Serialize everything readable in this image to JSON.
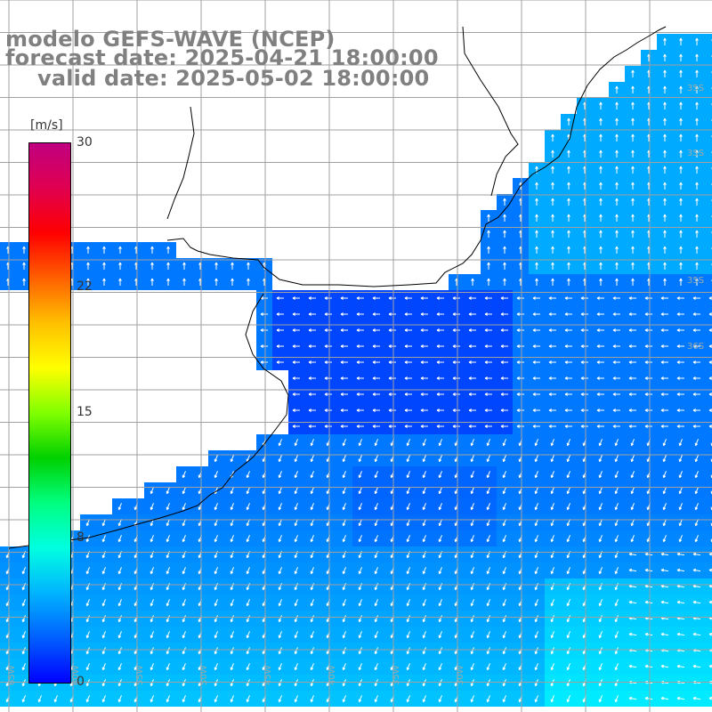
{
  "title": {
    "model": "modelo GEFS-WAVE (NCEP)",
    "forecast": "forecast date: 2025-04-21 18:00:00",
    "valid": "valid date: 2025-05-02 18:00:00"
  },
  "colorbar": {
    "unit": "[m/s]",
    "ticks": [
      "30",
      "22",
      "15",
      "8",
      "0"
    ],
    "tick_values": [
      30,
      22,
      15,
      8,
      0
    ],
    "range": [
      0,
      30
    ],
    "gradient": [
      "#0000ff",
      "#0060ff",
      "#00b4ff",
      "#00ffe0",
      "#00ff80",
      "#00d000",
      "#80ff00",
      "#ffff00",
      "#ffc000",
      "#ff6000",
      "#ff0000",
      "#e00050",
      "#c00080"
    ]
  },
  "map": {
    "land_color": "#ffffff",
    "coast_color": "#000000",
    "grid_color": "#a0a0a0",
    "arrow_color": "#ffffff",
    "lat_labels": [
      "35S",
      "35S",
      "35S",
      "36S"
    ],
    "lon_labels": [
      "65W",
      "60W",
      "55W",
      "50W",
      "45W",
      "40W",
      "35W",
      "30W"
    ]
  }
}
